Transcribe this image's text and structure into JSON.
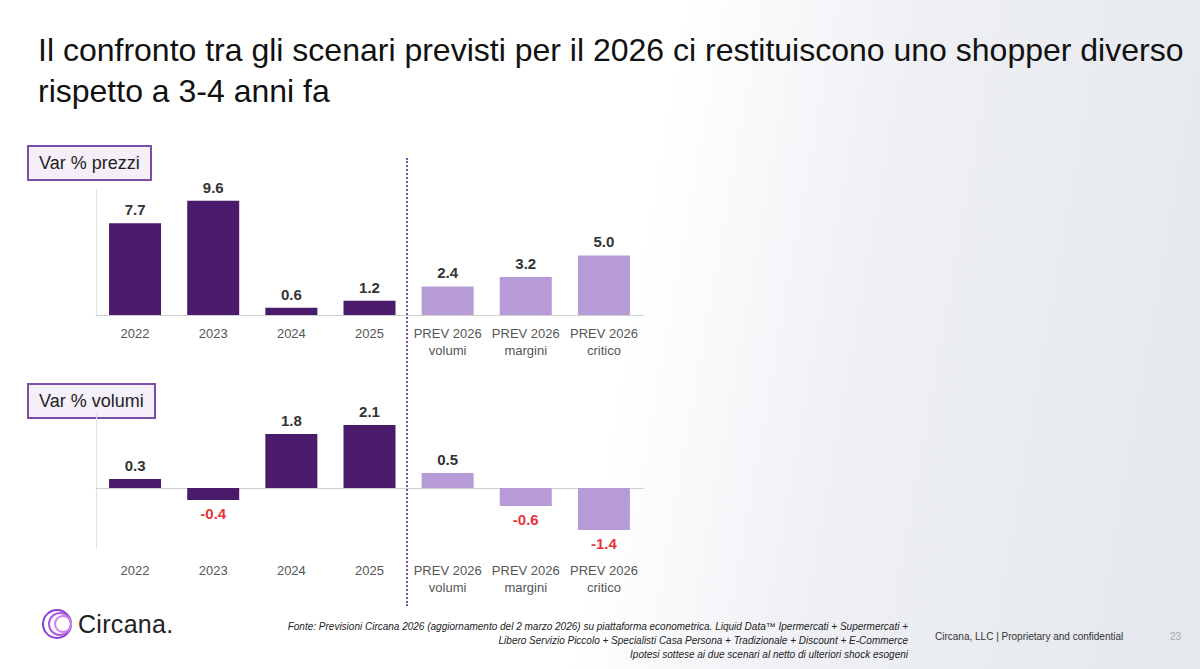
{
  "page": {
    "title": "Il confronto tra gli scenari previsti per il 2026 ci restituiscono uno shopper diverso rispetto a 3-4 anni fa",
    "logo": "Circana.",
    "source": [
      "Fonte: Previsioni Circana 2026 (aggiornamento del 2 marzo 2026) su piattaforma econometrica. Liquid Data™ Ipermercati + Supermercati +",
      "Libero Servizio Piccolo + Specialisti Casa Persona + Tradizionale + Discount + E-Commerce",
      "Ipotesi sottese ai due scenari al netto di ulteriori shock esogeni"
    ],
    "footer": "Circana, LLC | Proprietary and confidential",
    "page_number": "23"
  },
  "chart_data": [
    {
      "type": "bar",
      "title": "Var % prezzi",
      "categories": [
        "2022",
        "2023",
        "2024",
        "2025",
        "PREV 2026 volumi",
        "PREV 2026 margini",
        "PREV 2026 critico"
      ],
      "values": [
        7.7,
        9.6,
        0.6,
        1.2,
        2.4,
        3.2,
        5.0
      ],
      "value_labels": [
        "7.7",
        "9.6",
        "0.6",
        "1.2",
        "2.4",
        "3.2",
        "5.0"
      ],
      "colors": [
        "#4a1a6b",
        "#4a1a6b",
        "#4a1a6b",
        "#4a1a6b",
        "#b69bd6",
        "#b69bd6",
        "#b69bd6"
      ],
      "ylim": [
        0,
        10.5
      ],
      "grid": false,
      "data_labels": true,
      "tick_labels": "x"
    },
    {
      "type": "bar",
      "title": "Var % volumi",
      "categories": [
        "2022",
        "2023",
        "2024",
        "2025",
        "PREV 2026 volumi",
        "PREV 2026 margini",
        "PREV 2026 critico"
      ],
      "values": [
        0.3,
        -0.4,
        1.8,
        2.1,
        0.5,
        -0.6,
        -1.4
      ],
      "colors": [
        "#4a1a6b",
        "#4a1a6b",
        "#4a1a6b",
        "#4a1a6b",
        "#b69bd6",
        "#b69bd6",
        "#b69bd6"
      ],
      "ylim": [
        -2,
        2.5
      ],
      "grid": false,
      "data_labels": true,
      "tick_labels": "x"
    }
  ]
}
